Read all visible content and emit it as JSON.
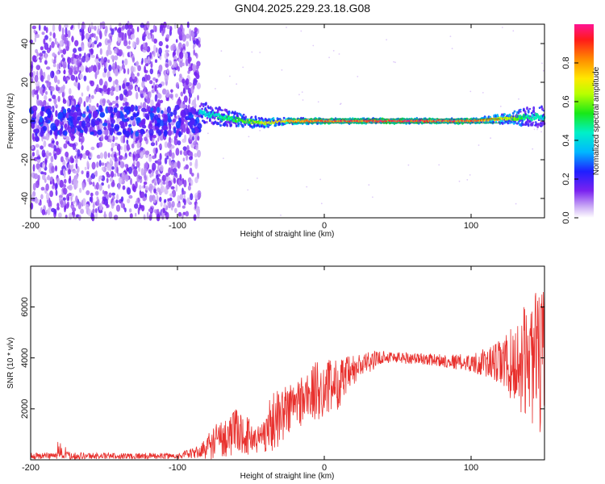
{
  "title": "GN04.2025.229.23.18.G08",
  "chart_data": [
    {
      "type": "heatmap",
      "xlabel": "Height of straight line (km)",
      "ylabel": "Frequency (Hz)",
      "xlim": [
        -200,
        150
      ],
      "ylim": [
        -50,
        50
      ],
      "x_ticks": [
        -200,
        -100,
        0,
        100
      ],
      "y_ticks": [
        -40,
        -20,
        0,
        20,
        40
      ],
      "colorbar": {
        "label": "Normalized spectral amplitude",
        "range": [
          0,
          1
        ],
        "ticks": [
          "0.0",
          "0.2",
          "0.4",
          "0.6",
          "0.8"
        ]
      },
      "noise_region": {
        "x_from": -200,
        "x_to": -85,
        "f_from": -50,
        "f_to": 50
      },
      "ridge": [
        {
          "x": -85,
          "f": 5,
          "width": 5,
          "amp": 0.45
        },
        {
          "x": -70,
          "f": 2,
          "width": 4,
          "amp": 0.5
        },
        {
          "x": -55,
          "f": 0,
          "width": 3,
          "amp": 0.6
        },
        {
          "x": -40,
          "f": -1,
          "width": 2,
          "amp": 0.75
        },
        {
          "x": -25,
          "f": 0,
          "width": 1.5,
          "amp": 0.85
        },
        {
          "x": 0,
          "f": 0,
          "width": 1,
          "amp": 0.95
        },
        {
          "x": 50,
          "f": 0,
          "width": 1,
          "amp": 1.0
        },
        {
          "x": 100,
          "f": 0,
          "width": 1,
          "amp": 0.95
        },
        {
          "x": 120,
          "f": 1,
          "width": 2,
          "amp": 0.8
        },
        {
          "x": 135,
          "f": 2,
          "width": 4,
          "amp": 0.55
        },
        {
          "x": 150,
          "f": 2,
          "width": 5,
          "amp": 0.45
        }
      ]
    },
    {
      "type": "line",
      "xlabel": "Height of straight line (km)",
      "ylabel": "SNR (10 * v/v)",
      "xlim": [
        -200,
        150
      ],
      "ylim": [
        0,
        7600
      ],
      "x_ticks": [
        -200,
        -100,
        0,
        100
      ],
      "y_ticks": [
        2000,
        4000,
        6000
      ],
      "series_color": "#e8302d",
      "envelope": [
        {
          "x": -200,
          "mean": 150,
          "spread": 120
        },
        {
          "x": -180,
          "mean": 170,
          "spread": 160
        },
        {
          "x": -150,
          "mean": 150,
          "spread": 120
        },
        {
          "x": -100,
          "mean": 150,
          "spread": 120
        },
        {
          "x": -85,
          "mean": 300,
          "spread": 250
        },
        {
          "x": -75,
          "mean": 700,
          "spread": 700
        },
        {
          "x": -60,
          "mean": 1100,
          "spread": 900
        },
        {
          "x": -45,
          "mean": 800,
          "spread": 600
        },
        {
          "x": -35,
          "mean": 1500,
          "spread": 1200
        },
        {
          "x": -20,
          "mean": 2200,
          "spread": 1000
        },
        {
          "x": -5,
          "mean": 2700,
          "spread": 1200
        },
        {
          "x": 10,
          "mean": 3000,
          "spread": 1000
        },
        {
          "x": 25,
          "mean": 3700,
          "spread": 500
        },
        {
          "x": 40,
          "mean": 4050,
          "spread": 250
        },
        {
          "x": 70,
          "mean": 3950,
          "spread": 220
        },
        {
          "x": 100,
          "mean": 3800,
          "spread": 350
        },
        {
          "x": 115,
          "mean": 3800,
          "spread": 700
        },
        {
          "x": 130,
          "mean": 3700,
          "spread": 1600
        },
        {
          "x": 140,
          "mean": 4000,
          "spread": 2500
        },
        {
          "x": 150,
          "mean": 3800,
          "spread": 3000
        }
      ]
    }
  ]
}
